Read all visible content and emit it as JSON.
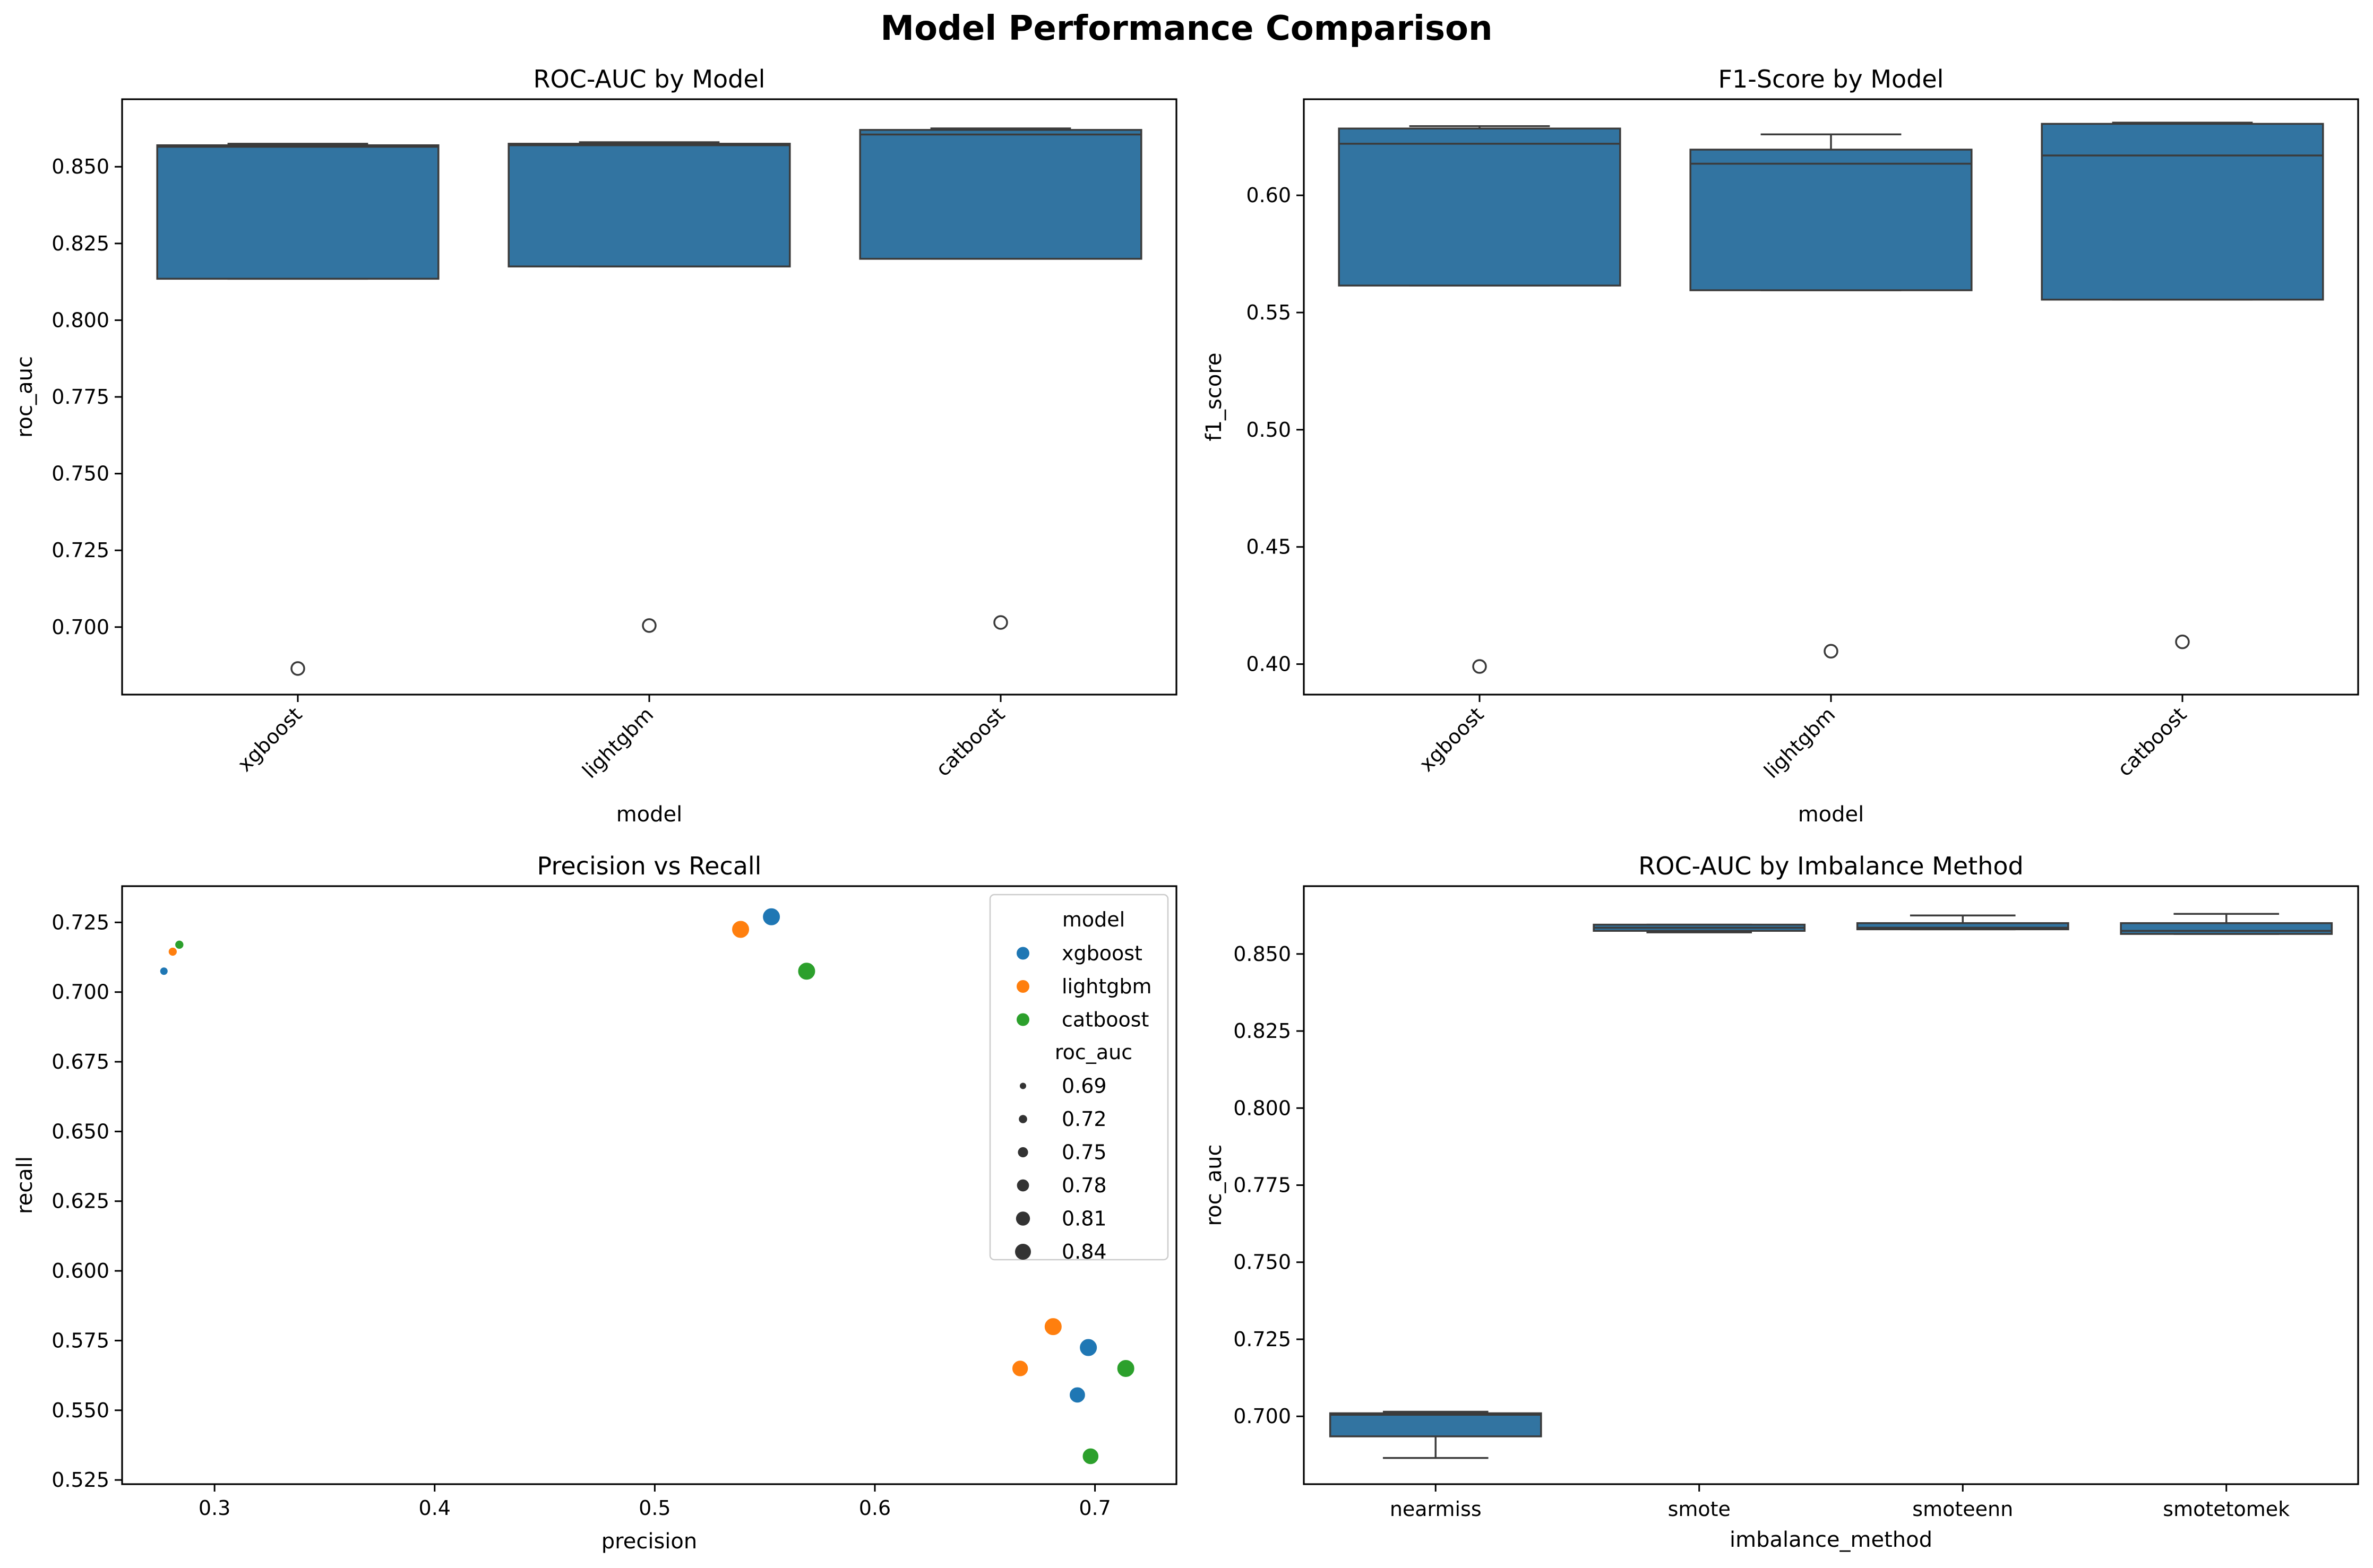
{
  "figure": {
    "title": "Model Performance Comparison"
  },
  "chart_data": [
    {
      "type": "box",
      "title": "ROC-AUC by Model",
      "xlabel": "model",
      "ylabel": "roc_auc",
      "ylim": [
        0.678,
        0.872
      ],
      "yticks": [
        0.7,
        0.725,
        0.75,
        0.775,
        0.8,
        0.825,
        0.85
      ],
      "ytick_labels": [
        "0.700",
        "0.725",
        "0.750",
        "0.775",
        "0.800",
        "0.825",
        "0.850"
      ],
      "xtick_rotation": 45,
      "color": "#3274a1",
      "boxes": [
        {
          "category": "xgboost",
          "q1": 0.8135,
          "median": 0.8565,
          "q3": 0.857,
          "whisker_low": 0.8135,
          "whisker_high": 0.8575,
          "outliers": [
            0.6865
          ]
        },
        {
          "category": "lightgbm",
          "q1": 0.8175,
          "median": 0.857,
          "q3": 0.8575,
          "whisker_low": 0.8175,
          "whisker_high": 0.858,
          "outliers": [
            0.7005
          ]
        },
        {
          "category": "catboost",
          "q1": 0.82,
          "median": 0.8605,
          "q3": 0.862,
          "whisker_low": 0.82,
          "whisker_high": 0.8625,
          "outliers": [
            0.7015
          ]
        }
      ]
    },
    {
      "type": "box",
      "title": "F1-Score by Model",
      "xlabel": "model",
      "ylabel": "f1_score",
      "ylim": [
        0.387,
        0.641
      ],
      "yticks": [
        0.4,
        0.45,
        0.5,
        0.55,
        0.6
      ],
      "ytick_labels": [
        "0.40",
        "0.45",
        "0.50",
        "0.55",
        "0.60"
      ],
      "xtick_rotation": 45,
      "color": "#3274a1",
      "boxes": [
        {
          "category": "xgboost",
          "q1": 0.5615,
          "median": 0.622,
          "q3": 0.6285,
          "whisker_low": 0.5615,
          "whisker_high": 0.6295,
          "outliers": [
            0.399
          ]
        },
        {
          "category": "lightgbm",
          "q1": 0.5595,
          "median": 0.6135,
          "q3": 0.6195,
          "whisker_low": 0.5595,
          "whisker_high": 0.626,
          "outliers": [
            0.4055
          ]
        },
        {
          "category": "catboost",
          "q1": 0.5555,
          "median": 0.617,
          "q3": 0.6305,
          "whisker_low": 0.5555,
          "whisker_high": 0.631,
          "outliers": [
            0.4095
          ]
        }
      ]
    },
    {
      "type": "scatter",
      "title": "Precision vs Recall",
      "xlabel": "precision",
      "ylabel": "recall",
      "xlim": [
        0.258,
        0.737
      ],
      "ylim": [
        0.5235,
        0.738
      ],
      "xticks": [
        0.3,
        0.4,
        0.5,
        0.6,
        0.7
      ],
      "xtick_labels": [
        "0.3",
        "0.4",
        "0.5",
        "0.6",
        "0.7"
      ],
      "yticks": [
        0.525,
        0.55,
        0.575,
        0.6,
        0.625,
        0.65,
        0.675,
        0.7,
        0.725
      ],
      "ytick_labels": [
        "0.525",
        "0.550",
        "0.575",
        "0.600",
        "0.625",
        "0.650",
        "0.675",
        "0.700",
        "0.725"
      ],
      "legend": {
        "placement": "top-right",
        "hue_title": "model",
        "size_title": "roc_auc",
        "size_values": [
          0.69,
          0.72,
          0.75,
          0.78,
          0.81,
          0.84
        ],
        "size_labels": [
          "0.69",
          "0.72",
          "0.75",
          "0.78",
          "0.81",
          "0.84"
        ]
      },
      "series": [
        {
          "name": "xgboost",
          "color": "#1f77b4",
          "points": [
            {
              "x": 0.277,
              "y": 0.7075,
              "roc_auc": 0.6865
            },
            {
              "x": 0.553,
              "y": 0.727,
              "roc_auc": 0.857
            },
            {
              "x": 0.697,
              "y": 0.5725,
              "roc_auc": 0.856
            },
            {
              "x": 0.692,
              "y": 0.5555,
              "roc_auc": 0.8135
            }
          ]
        },
        {
          "name": "lightgbm",
          "color": "#ff7f0e",
          "points": [
            {
              "x": 0.281,
              "y": 0.7145,
              "roc_auc": 0.7005
            },
            {
              "x": 0.539,
              "y": 0.7225,
              "roc_auc": 0.8575
            },
            {
              "x": 0.681,
              "y": 0.58,
              "roc_auc": 0.857
            },
            {
              "x": 0.666,
              "y": 0.565,
              "roc_auc": 0.8175
            }
          ]
        },
        {
          "name": "catboost",
          "color": "#2ca02c",
          "points": [
            {
              "x": 0.284,
              "y": 0.717,
              "roc_auc": 0.7015
            },
            {
              "x": 0.569,
              "y": 0.7075,
              "roc_auc": 0.862
            },
            {
              "x": 0.714,
              "y": 0.565,
              "roc_auc": 0.8605
            },
            {
              "x": 0.698,
              "y": 0.5335,
              "roc_auc": 0.82
            }
          ]
        }
      ]
    },
    {
      "type": "box",
      "title": "ROC-AUC by Imbalance Method",
      "xlabel": "imbalance_method",
      "ylabel": "roc_auc",
      "ylim": [
        0.678,
        0.872
      ],
      "yticks": [
        0.7,
        0.725,
        0.75,
        0.775,
        0.8,
        0.825,
        0.85
      ],
      "ytick_labels": [
        "0.700",
        "0.725",
        "0.750",
        "0.775",
        "0.800",
        "0.825",
        "0.850"
      ],
      "xtick_rotation": 0,
      "color": "#3274a1",
      "boxes": [
        {
          "category": "nearmiss",
          "q1": 0.6935,
          "median": 0.7005,
          "q3": 0.701,
          "whisker_low": 0.6865,
          "whisker_high": 0.7015,
          "outliers": []
        },
        {
          "category": "smote",
          "q1": 0.8575,
          "median": 0.8585,
          "q3": 0.8595,
          "whisker_low": 0.857,
          "whisker_high": 0.8595,
          "outliers": []
        },
        {
          "category": "smoteenn",
          "q1": 0.858,
          "median": 0.8585,
          "q3": 0.86,
          "whisker_low": 0.858,
          "whisker_high": 0.8625,
          "outliers": []
        },
        {
          "category": "smotetomek",
          "q1": 0.8565,
          "median": 0.8575,
          "q3": 0.86,
          "whisker_low": 0.8565,
          "whisker_high": 0.863,
          "outliers": []
        }
      ]
    }
  ]
}
